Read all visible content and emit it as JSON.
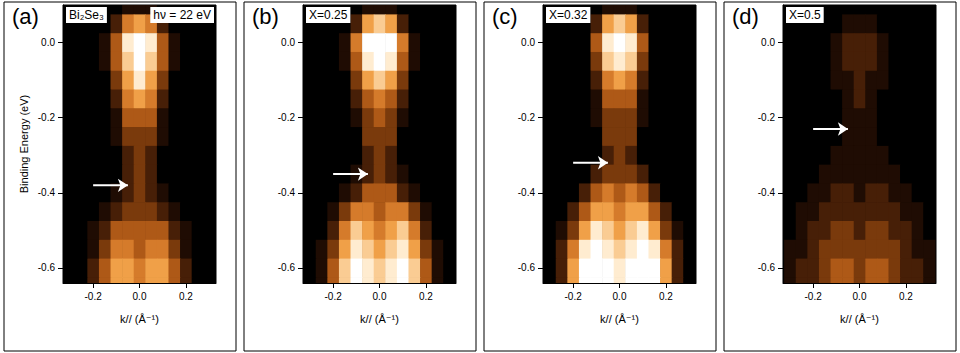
{
  "chart_data": [
    {
      "type": "heatmap",
      "title": "(a)",
      "annotations": [
        "Bi₂Se₃",
        "hν = 22 eV"
      ],
      "x_label": "k// (Å⁻¹)",
      "y_label": "Binding Energy (eV)",
      "xlim": [
        -0.33,
        0.33
      ],
      "ylim": [
        -0.64,
        0.1
      ],
      "xticks": [
        -0.2,
        {
          "value": 0,
          "label": "0.0"
        },
        0.2
      ],
      "yticks": [
        {
          "value": 0,
          "label": "0.0"
        },
        -0.2,
        -0.4,
        -0.6
      ],
      "grid": false,
      "zlim": [
        0,
        9
      ],
      "x": [
        -0.3,
        -0.25,
        -0.2,
        -0.15,
        -0.1,
        -0.05,
        0,
        0.05,
        0.1,
        0.15,
        0.2,
        0.25,
        0.3
      ],
      "y": [
        0.1,
        0.05,
        0,
        -0.05,
        -0.1,
        -0.15,
        -0.2,
        -0.25,
        -0.3,
        -0.35,
        -0.4,
        -0.45,
        -0.5,
        -0.55,
        -0.6,
        -0.65
      ],
      "cells": [
        [
          0,
          0,
          0,
          0,
          0,
          1,
          1,
          1,
          0,
          0,
          0,
          0,
          0
        ],
        [
          0,
          0,
          0,
          0,
          2,
          5,
          6,
          5,
          2,
          0,
          0,
          0,
          0
        ],
        [
          0,
          0,
          0,
          1,
          4,
          8,
          9,
          8,
          4,
          1,
          0,
          0,
          0
        ],
        [
          0,
          0,
          0,
          1,
          4,
          7,
          9,
          7,
          4,
          1,
          0,
          0,
          0
        ],
        [
          0,
          0,
          0,
          0,
          3,
          6,
          8,
          6,
          3,
          0,
          0,
          0,
          0
        ],
        [
          0,
          0,
          0,
          0,
          2,
          5,
          6,
          5,
          2,
          0,
          0,
          0,
          0
        ],
        [
          0,
          0,
          0,
          0,
          1,
          4,
          4,
          4,
          1,
          0,
          0,
          0,
          0
        ],
        [
          0,
          0,
          0,
          0,
          1,
          3,
          3,
          3,
          1,
          0,
          0,
          0,
          0
        ],
        [
          0,
          0,
          0,
          0,
          0,
          2,
          3,
          2,
          0,
          0,
          0,
          0,
          0
        ],
        [
          0,
          0,
          0,
          0,
          0,
          2,
          3,
          2,
          0,
          0,
          0,
          0,
          0
        ],
        [
          0,
          0,
          0,
          0,
          1,
          2,
          3,
          2,
          1,
          0,
          0,
          0,
          0
        ],
        [
          0,
          0,
          0,
          1,
          2,
          3,
          3,
          3,
          2,
          1,
          0,
          0,
          0
        ],
        [
          0,
          0,
          1,
          2,
          4,
          4,
          4,
          4,
          4,
          2,
          1,
          0,
          0
        ],
        [
          0,
          0,
          1,
          3,
          5,
          5,
          4,
          5,
          5,
          3,
          1,
          0,
          0
        ],
        [
          0,
          0,
          2,
          4,
          6,
          6,
          5,
          6,
          6,
          4,
          2,
          0,
          0
        ],
        [
          0,
          0,
          2,
          4,
          6,
          6,
          5,
          6,
          6,
          4,
          2,
          0,
          0
        ]
      ],
      "arrow": {
        "x": [
          -0.2,
          -0.05
        ],
        "y": -0.38
      }
    },
    {
      "type": "heatmap",
      "title": "(b)",
      "annotations": [
        "X=0.25"
      ],
      "x_label": "k// (Å⁻¹)",
      "xlim": [
        -0.33,
        0.33
      ],
      "ylim": [
        -0.64,
        0.1
      ],
      "xticks": [
        -0.2,
        {
          "value": 0,
          "label": "0.0"
        },
        0.2
      ],
      "yticks": [
        {
          "value": 0,
          "label": "0.0"
        },
        -0.2,
        -0.4,
        -0.6
      ],
      "grid": false,
      "zlim": [
        0,
        9
      ],
      "x": [
        -0.3,
        -0.25,
        -0.2,
        -0.15,
        -0.1,
        -0.05,
        0,
        0.05,
        0.1,
        0.15,
        0.2,
        0.25,
        0.3
      ],
      "y": [
        0.1,
        0.05,
        0,
        -0.05,
        -0.1,
        -0.15,
        -0.2,
        -0.25,
        -0.3,
        -0.35,
        -0.4,
        -0.45,
        -0.5,
        -0.55,
        -0.6,
        -0.65
      ],
      "cells": [
        [
          0,
          0,
          0,
          0,
          0,
          1,
          1,
          1,
          0,
          0,
          0,
          0,
          0
        ],
        [
          0,
          0,
          0,
          0,
          2,
          6,
          7,
          6,
          2,
          0,
          0,
          0,
          0
        ],
        [
          0,
          0,
          0,
          1,
          5,
          9,
          9,
          9,
          5,
          1,
          0,
          0,
          0
        ],
        [
          0,
          0,
          0,
          1,
          4,
          8,
          9,
          8,
          4,
          1,
          0,
          0,
          0
        ],
        [
          0,
          0,
          0,
          0,
          3,
          6,
          7,
          6,
          3,
          0,
          0,
          0,
          0
        ],
        [
          0,
          0,
          0,
          0,
          2,
          4,
          5,
          4,
          2,
          0,
          0,
          0,
          0
        ],
        [
          0,
          0,
          0,
          0,
          1,
          3,
          4,
          3,
          1,
          0,
          0,
          0,
          0
        ],
        [
          0,
          0,
          0,
          0,
          0,
          3,
          3,
          3,
          0,
          0,
          0,
          0,
          0
        ],
        [
          0,
          0,
          0,
          0,
          0,
          2,
          3,
          2,
          0,
          0,
          0,
          0,
          0
        ],
        [
          0,
          0,
          0,
          0,
          1,
          2,
          3,
          2,
          1,
          0,
          0,
          0,
          0
        ],
        [
          0,
          0,
          0,
          1,
          2,
          4,
          4,
          4,
          2,
          1,
          0,
          0,
          0
        ],
        [
          0,
          0,
          1,
          3,
          5,
          5,
          4,
          5,
          5,
          3,
          1,
          0,
          0
        ],
        [
          0,
          0,
          2,
          5,
          7,
          6,
          5,
          6,
          7,
          5,
          2,
          0,
          0
        ],
        [
          0,
          1,
          3,
          6,
          8,
          7,
          6,
          7,
          8,
          6,
          3,
          1,
          0
        ],
        [
          0,
          1,
          4,
          7,
          9,
          8,
          7,
          8,
          9,
          7,
          4,
          1,
          0
        ],
        [
          0,
          1,
          4,
          7,
          9,
          8,
          7,
          8,
          9,
          7,
          4,
          1,
          0
        ]
      ],
      "arrow": {
        "x": [
          -0.2,
          -0.05
        ],
        "y": -0.35
      }
    },
    {
      "type": "heatmap",
      "title": "(c)",
      "annotations": [
        "X=0.32"
      ],
      "x_label": "k// (Å⁻¹)",
      "xlim": [
        -0.33,
        0.33
      ],
      "ylim": [
        -0.64,
        0.1
      ],
      "xticks": [
        -0.2,
        {
          "value": 0,
          "label": "0.0"
        },
        0.2
      ],
      "yticks": [
        {
          "value": 0,
          "label": "0.0"
        },
        -0.2,
        -0.4,
        -0.6
      ],
      "grid": false,
      "zlim": [
        0,
        9
      ],
      "x": [
        -0.3,
        -0.25,
        -0.2,
        -0.15,
        -0.1,
        -0.05,
        0,
        0.05,
        0.1,
        0.15,
        0.2,
        0.25,
        0.3
      ],
      "y": [
        0.1,
        0.05,
        0,
        -0.05,
        -0.1,
        -0.15,
        -0.2,
        -0.25,
        -0.3,
        -0.35,
        -0.4,
        -0.45,
        -0.5,
        -0.55,
        -0.6,
        -0.65
      ],
      "cells": [
        [
          0,
          0,
          0,
          0,
          0,
          1,
          1,
          1,
          0,
          0,
          0,
          0,
          0
        ],
        [
          0,
          0,
          0,
          0,
          2,
          6,
          7,
          6,
          2,
          0,
          0,
          0,
          0
        ],
        [
          0,
          0,
          0,
          0,
          4,
          8,
          9,
          8,
          4,
          0,
          0,
          0,
          0
        ],
        [
          0,
          0,
          0,
          0,
          3,
          7,
          8,
          7,
          3,
          0,
          0,
          0,
          0
        ],
        [
          0,
          0,
          0,
          0,
          2,
          5,
          6,
          5,
          2,
          0,
          0,
          0,
          0
        ],
        [
          0,
          0,
          0,
          0,
          1,
          4,
          4,
          4,
          1,
          0,
          0,
          0,
          0
        ],
        [
          0,
          0,
          0,
          0,
          1,
          3,
          3,
          3,
          1,
          0,
          0,
          0,
          0
        ],
        [
          0,
          0,
          0,
          0,
          0,
          3,
          3,
          3,
          0,
          0,
          0,
          0,
          0
        ],
        [
          0,
          0,
          0,
          0,
          0,
          2,
          3,
          2,
          0,
          0,
          0,
          0,
          0
        ],
        [
          0,
          0,
          0,
          0,
          2,
          3,
          3,
          3,
          2,
          0,
          0,
          0,
          0
        ],
        [
          0,
          0,
          0,
          2,
          4,
          5,
          4,
          5,
          4,
          2,
          0,
          0,
          0
        ],
        [
          0,
          0,
          2,
          4,
          6,
          6,
          5,
          6,
          6,
          4,
          2,
          0,
          0
        ],
        [
          0,
          1,
          3,
          6,
          8,
          7,
          6,
          7,
          8,
          6,
          3,
          1,
          0
        ],
        [
          0,
          2,
          5,
          8,
          9,
          8,
          7,
          8,
          9,
          8,
          5,
          2,
          0
        ],
        [
          0,
          2,
          6,
          9,
          9,
          9,
          8,
          9,
          9,
          9,
          6,
          2,
          0
        ],
        [
          0,
          2,
          6,
          9,
          9,
          9,
          8,
          9,
          9,
          9,
          6,
          2,
          0
        ]
      ],
      "arrow": {
        "x": [
          -0.2,
          -0.05
        ],
        "y": -0.32
      }
    },
    {
      "type": "heatmap",
      "title": "(d)",
      "annotations": [
        "X=0.5"
      ],
      "x_label": "k// (Å⁻¹)",
      "xlim": [
        -0.33,
        0.33
      ],
      "ylim": [
        -0.64,
        0.1
      ],
      "xticks": [
        -0.2,
        {
          "value": 0,
          "label": "0.0"
        },
        0.2
      ],
      "yticks": [
        {
          "value": 0,
          "label": "0.0"
        },
        -0.2,
        -0.4,
        -0.6
      ],
      "grid": false,
      "zlim": [
        0,
        9
      ],
      "x": [
        -0.3,
        -0.25,
        -0.2,
        -0.15,
        -0.1,
        -0.05,
        0,
        0.05,
        0.1,
        0.15,
        0.2,
        0.25,
        0.3
      ],
      "y": [
        0.1,
        0.05,
        0,
        -0.05,
        -0.1,
        -0.15,
        -0.2,
        -0.25,
        -0.3,
        -0.35,
        -0.4,
        -0.45,
        -0.5,
        -0.55,
        -0.6,
        -0.65
      ],
      "cells": [
        [
          0,
          0,
          0,
          0,
          0,
          0,
          0,
          0,
          0,
          0,
          0,
          0,
          0
        ],
        [
          0,
          0,
          0,
          0,
          0,
          1,
          1,
          1,
          0,
          0,
          0,
          0,
          0
        ],
        [
          0,
          0,
          0,
          0,
          1,
          2,
          2,
          2,
          1,
          0,
          0,
          0,
          0
        ],
        [
          0,
          0,
          0,
          0,
          1,
          2,
          2,
          2,
          1,
          0,
          0,
          0,
          0
        ],
        [
          0,
          0,
          0,
          0,
          1,
          1,
          2,
          1,
          1,
          0,
          0,
          0,
          0
        ],
        [
          0,
          0,
          0,
          0,
          0,
          1,
          2,
          1,
          0,
          0,
          0,
          0,
          0
        ],
        [
          0,
          0,
          0,
          0,
          0,
          1,
          1,
          1,
          0,
          0,
          0,
          0,
          0
        ],
        [
          0,
          0,
          0,
          0,
          0,
          1,
          1,
          1,
          0,
          0,
          0,
          0,
          0
        ],
        [
          0,
          0,
          0,
          0,
          1,
          1,
          1,
          1,
          1,
          0,
          0,
          0,
          0
        ],
        [
          0,
          0,
          0,
          1,
          1,
          1,
          1,
          1,
          1,
          1,
          0,
          0,
          0
        ],
        [
          0,
          0,
          1,
          1,
          2,
          2,
          1,
          2,
          2,
          1,
          1,
          0,
          0
        ],
        [
          0,
          1,
          1,
          2,
          2,
          2,
          2,
          2,
          2,
          2,
          1,
          1,
          0
        ],
        [
          0,
          1,
          2,
          2,
          3,
          3,
          2,
          3,
          3,
          2,
          2,
          1,
          0
        ],
        [
          1,
          1,
          2,
          3,
          3,
          3,
          3,
          3,
          3,
          3,
          2,
          1,
          1
        ],
        [
          1,
          2,
          2,
          3,
          4,
          4,
          3,
          4,
          4,
          3,
          2,
          2,
          1
        ],
        [
          1,
          2,
          2,
          3,
          4,
          4,
          3,
          4,
          4,
          3,
          2,
          2,
          1
        ]
      ],
      "arrow": {
        "x": [
          -0.2,
          -0.05
        ],
        "y": -0.23
      }
    }
  ]
}
